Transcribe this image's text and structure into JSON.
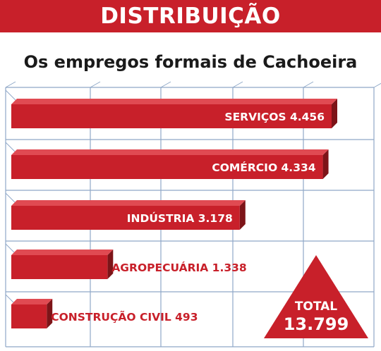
{
  "header": {
    "title": "DISTRIBUIÇÃO"
  },
  "chart_data": {
    "type": "bar",
    "title": "Os empregos formais de Cachoeira",
    "orientation": "horizontal",
    "categories": [
      "SERVIÇOS",
      "COMÉRCIO",
      "INDÚSTRIA",
      "AGROPECUÁRIA",
      "CONSTRUÇÃO CIVIL"
    ],
    "values": [
      4456,
      4334,
      3178,
      1338,
      493
    ],
    "value_labels": [
      "4.456",
      "4.334",
      "3.178",
      "1.338",
      "493"
    ],
    "total": {
      "label": "TOTAL",
      "value": 13799,
      "value_label": "13.799"
    },
    "colors": {
      "bar": "#c8202a",
      "bar_shadow": "#7d1418",
      "grid": "#8fa8c8",
      "label_outside": "#c8202a",
      "label_inside": "#ffffff",
      "header": "#c8202a"
    },
    "grid": true
  }
}
